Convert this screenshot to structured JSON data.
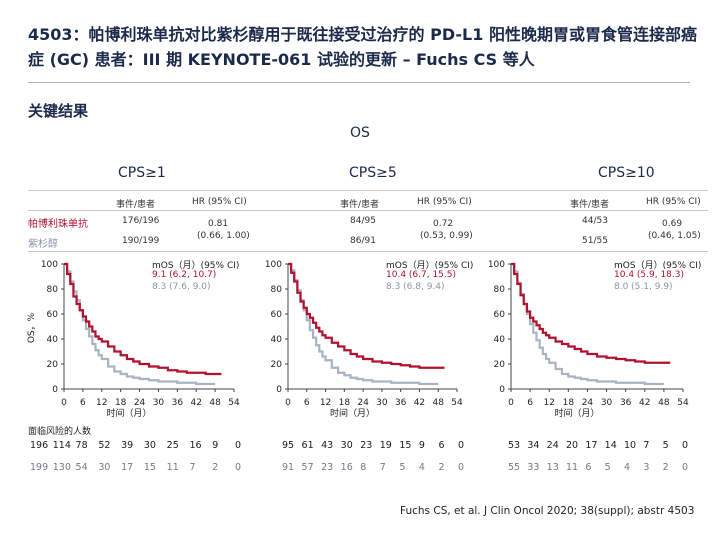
{
  "title": "4503：帕博利珠单抗对比紫杉醇用于既往接受过治疗的 PD-L1 阳性晚期胃或胃食管连接部癌症 (GC) 患者：III 期 KEYNOTE-061 试验的更新 – Fuchs CS 等人",
  "section": "关键结果",
  "os_label": "OS",
  "row_labels": [
    "帕博利珠单抗",
    "紫杉醇"
  ],
  "colors": {
    "pembro": "#b0112e",
    "paclitaxel": "#a8b4c4",
    "title": "#1b2a4a"
  },
  "col_events": "事件/患者",
  "col_hr": "HR (95% CI)",
  "y_axis_label": "OS，%",
  "x_axis_label": "时间（月）",
  "risk_label": "面临风险的人数",
  "source": "Fuchs CS, et al. J Clin Oncol 2020; 38(suppl); abstr 4503",
  "panels": [
    {
      "cps": "CPS≥1",
      "pembro_events": "176/196",
      "pacli_events": "190/199",
      "hr": "0.81",
      "hr_ci": "(0.66, 1.00)",
      "mos_header": "mOS（月）(95% CI)",
      "mos_pembro": "9.1 (6.2, 10.7)",
      "mos_pacli": "8.3 (7.6, 9.0)",
      "risk_pembro": [
        "196",
        "114",
        "78",
        "52",
        "39",
        "30",
        "25",
        "16",
        "9",
        "0"
      ],
      "risk_pacli": [
        "199",
        "130",
        "54",
        "30",
        "17",
        "15",
        "11",
        "7",
        "2",
        "0"
      ]
    },
    {
      "cps": "CPS≥5",
      "pembro_events": "84/95",
      "pacli_events": "86/91",
      "hr": "0.72",
      "hr_ci": "(0.53, 0.99)",
      "mos_header": "mOS（月）(95% CI)",
      "mos_pembro": "10.4 (6.7, 15.5)",
      "mos_pacli": "8.3 (6.8, 9.4)",
      "risk_pembro": [
        "95",
        "61",
        "43",
        "30",
        "23",
        "19",
        "15",
        "9",
        "6",
        "0"
      ],
      "risk_pacli": [
        "91",
        "57",
        "23",
        "16",
        "8",
        "7",
        "5",
        "4",
        "2",
        "0"
      ]
    },
    {
      "cps": "CPS≥10",
      "pembro_events": "44/53",
      "pacli_events": "51/55",
      "hr": "0.69",
      "hr_ci": "(0.46, 1.05)",
      "mos_header": "mOS（月）(95% CI)",
      "mos_pembro": "10.4 (5.9, 18.3)",
      "mos_pacli": "8.0 (5.1, 9.9)",
      "risk_pembro": [
        "53",
        "34",
        "24",
        "20",
        "17",
        "14",
        "10",
        "7",
        "5",
        "0"
      ],
      "risk_pacli": [
        "55",
        "33",
        "13",
        "11",
        "6",
        "5",
        "4",
        "3",
        "2",
        "0"
      ]
    }
  ],
  "chart_data": [
    {
      "type": "line",
      "title": "CPS≥1",
      "xlabel": "时间（月）",
      "ylabel": "OS，%",
      "xlim": [
        0,
        54
      ],
      "ylim": [
        0,
        100
      ],
      "x_ticks": [
        "0",
        "6",
        "12",
        "18",
        "24",
        "30",
        "36",
        "42",
        "48",
        "54"
      ],
      "y_ticks": [
        "0",
        "20",
        "40",
        "60",
        "80",
        "100"
      ],
      "series": [
        {
          "name": "帕博利珠单抗",
          "x": [
            0,
            1,
            2,
            3,
            4,
            5,
            6,
            7,
            8,
            9,
            10,
            11,
            12,
            14,
            16,
            18,
            20,
            22,
            24,
            27,
            30,
            33,
            36,
            39,
            42,
            45,
            48,
            50
          ],
          "y": [
            100,
            92,
            84,
            74,
            68,
            63,
            58,
            54,
            50,
            46,
            42,
            40,
            38,
            34,
            30,
            27,
            24,
            22,
            20,
            18,
            17,
            15,
            14,
            13,
            13,
            12,
            12,
            12
          ]
        },
        {
          "name": "紫杉醇",
          "x": [
            0,
            1,
            2,
            3,
            4,
            5,
            6,
            7,
            8,
            9,
            10,
            11,
            12,
            14,
            16,
            18,
            20,
            22,
            24,
            27,
            30,
            33,
            36,
            39,
            42,
            45,
            48
          ],
          "y": [
            100,
            94,
            86,
            78,
            71,
            63,
            55,
            48,
            42,
            36,
            31,
            27,
            24,
            18,
            14,
            12,
            10,
            9,
            8,
            7,
            6,
            6,
            5,
            5,
            4,
            4,
            4
          ]
        }
      ]
    },
    {
      "type": "line",
      "title": "CPS≥5",
      "xlabel": "时间（月）",
      "ylabel": "OS，%",
      "xlim": [
        0,
        54
      ],
      "ylim": [
        0,
        100
      ],
      "x_ticks": [
        "0",
        "6",
        "12",
        "18",
        "24",
        "30",
        "36",
        "42",
        "48",
        "54"
      ],
      "y_ticks": [
        "0",
        "20",
        "40",
        "60",
        "80",
        "100"
      ],
      "series": [
        {
          "name": "帕博利珠单抗",
          "x": [
            0,
            1,
            2,
            3,
            4,
            5,
            6,
            7,
            8,
            9,
            10,
            11,
            12,
            14,
            16,
            18,
            20,
            22,
            24,
            27,
            30,
            33,
            36,
            39,
            42,
            45,
            48,
            50
          ],
          "y": [
            100,
            93,
            86,
            77,
            70,
            65,
            60,
            57,
            53,
            49,
            46,
            43,
            41,
            37,
            34,
            31,
            28,
            26,
            24,
            22,
            21,
            20,
            19,
            18,
            17,
            17,
            17,
            17
          ]
        },
        {
          "name": "紫杉醇",
          "x": [
            0,
            1,
            2,
            3,
            4,
            5,
            6,
            7,
            8,
            9,
            10,
            11,
            12,
            14,
            16,
            18,
            20,
            22,
            24,
            27,
            30,
            33,
            36,
            39,
            42,
            45,
            48
          ],
          "y": [
            100,
            95,
            87,
            79,
            71,
            63,
            55,
            47,
            41,
            35,
            30,
            26,
            23,
            17,
            13,
            11,
            9,
            8,
            7,
            6,
            6,
            5,
            5,
            5,
            4,
            4,
            4
          ]
        }
      ]
    },
    {
      "type": "line",
      "title": "CPS≥10",
      "xlabel": "时间（月）",
      "ylabel": "OS，%",
      "xlim": [
        0,
        54
      ],
      "ylim": [
        0,
        100
      ],
      "x_ticks": [
        "0",
        "6",
        "12",
        "18",
        "24",
        "30",
        "36",
        "42",
        "48",
        "54"
      ],
      "y_ticks": [
        "0",
        "20",
        "40",
        "60",
        "80",
        "100"
      ],
      "series": [
        {
          "name": "帕博利珠单抗",
          "x": [
            0,
            1,
            2,
            3,
            4,
            5,
            6,
            7,
            8,
            9,
            10,
            11,
            12,
            14,
            16,
            18,
            20,
            22,
            24,
            27,
            30,
            33,
            36,
            39,
            42,
            45,
            48,
            50
          ],
          "y": [
            100,
            92,
            84,
            75,
            68,
            62,
            57,
            54,
            51,
            48,
            45,
            43,
            41,
            38,
            36,
            34,
            32,
            30,
            28,
            26,
            25,
            24,
            23,
            22,
            21,
            21,
            21,
            21
          ]
        },
        {
          "name": "紫杉醇",
          "x": [
            0,
            1,
            2,
            3,
            4,
            5,
            6,
            7,
            8,
            9,
            10,
            11,
            12,
            14,
            16,
            18,
            20,
            22,
            24,
            27,
            30,
            33,
            36,
            39,
            42,
            45,
            48
          ],
          "y": [
            100,
            94,
            85,
            76,
            68,
            60,
            52,
            45,
            39,
            33,
            28,
            24,
            21,
            16,
            12,
            10,
            9,
            8,
            7,
            6,
            6,
            5,
            5,
            5,
            4,
            4,
            4
          ]
        }
      ]
    }
  ]
}
